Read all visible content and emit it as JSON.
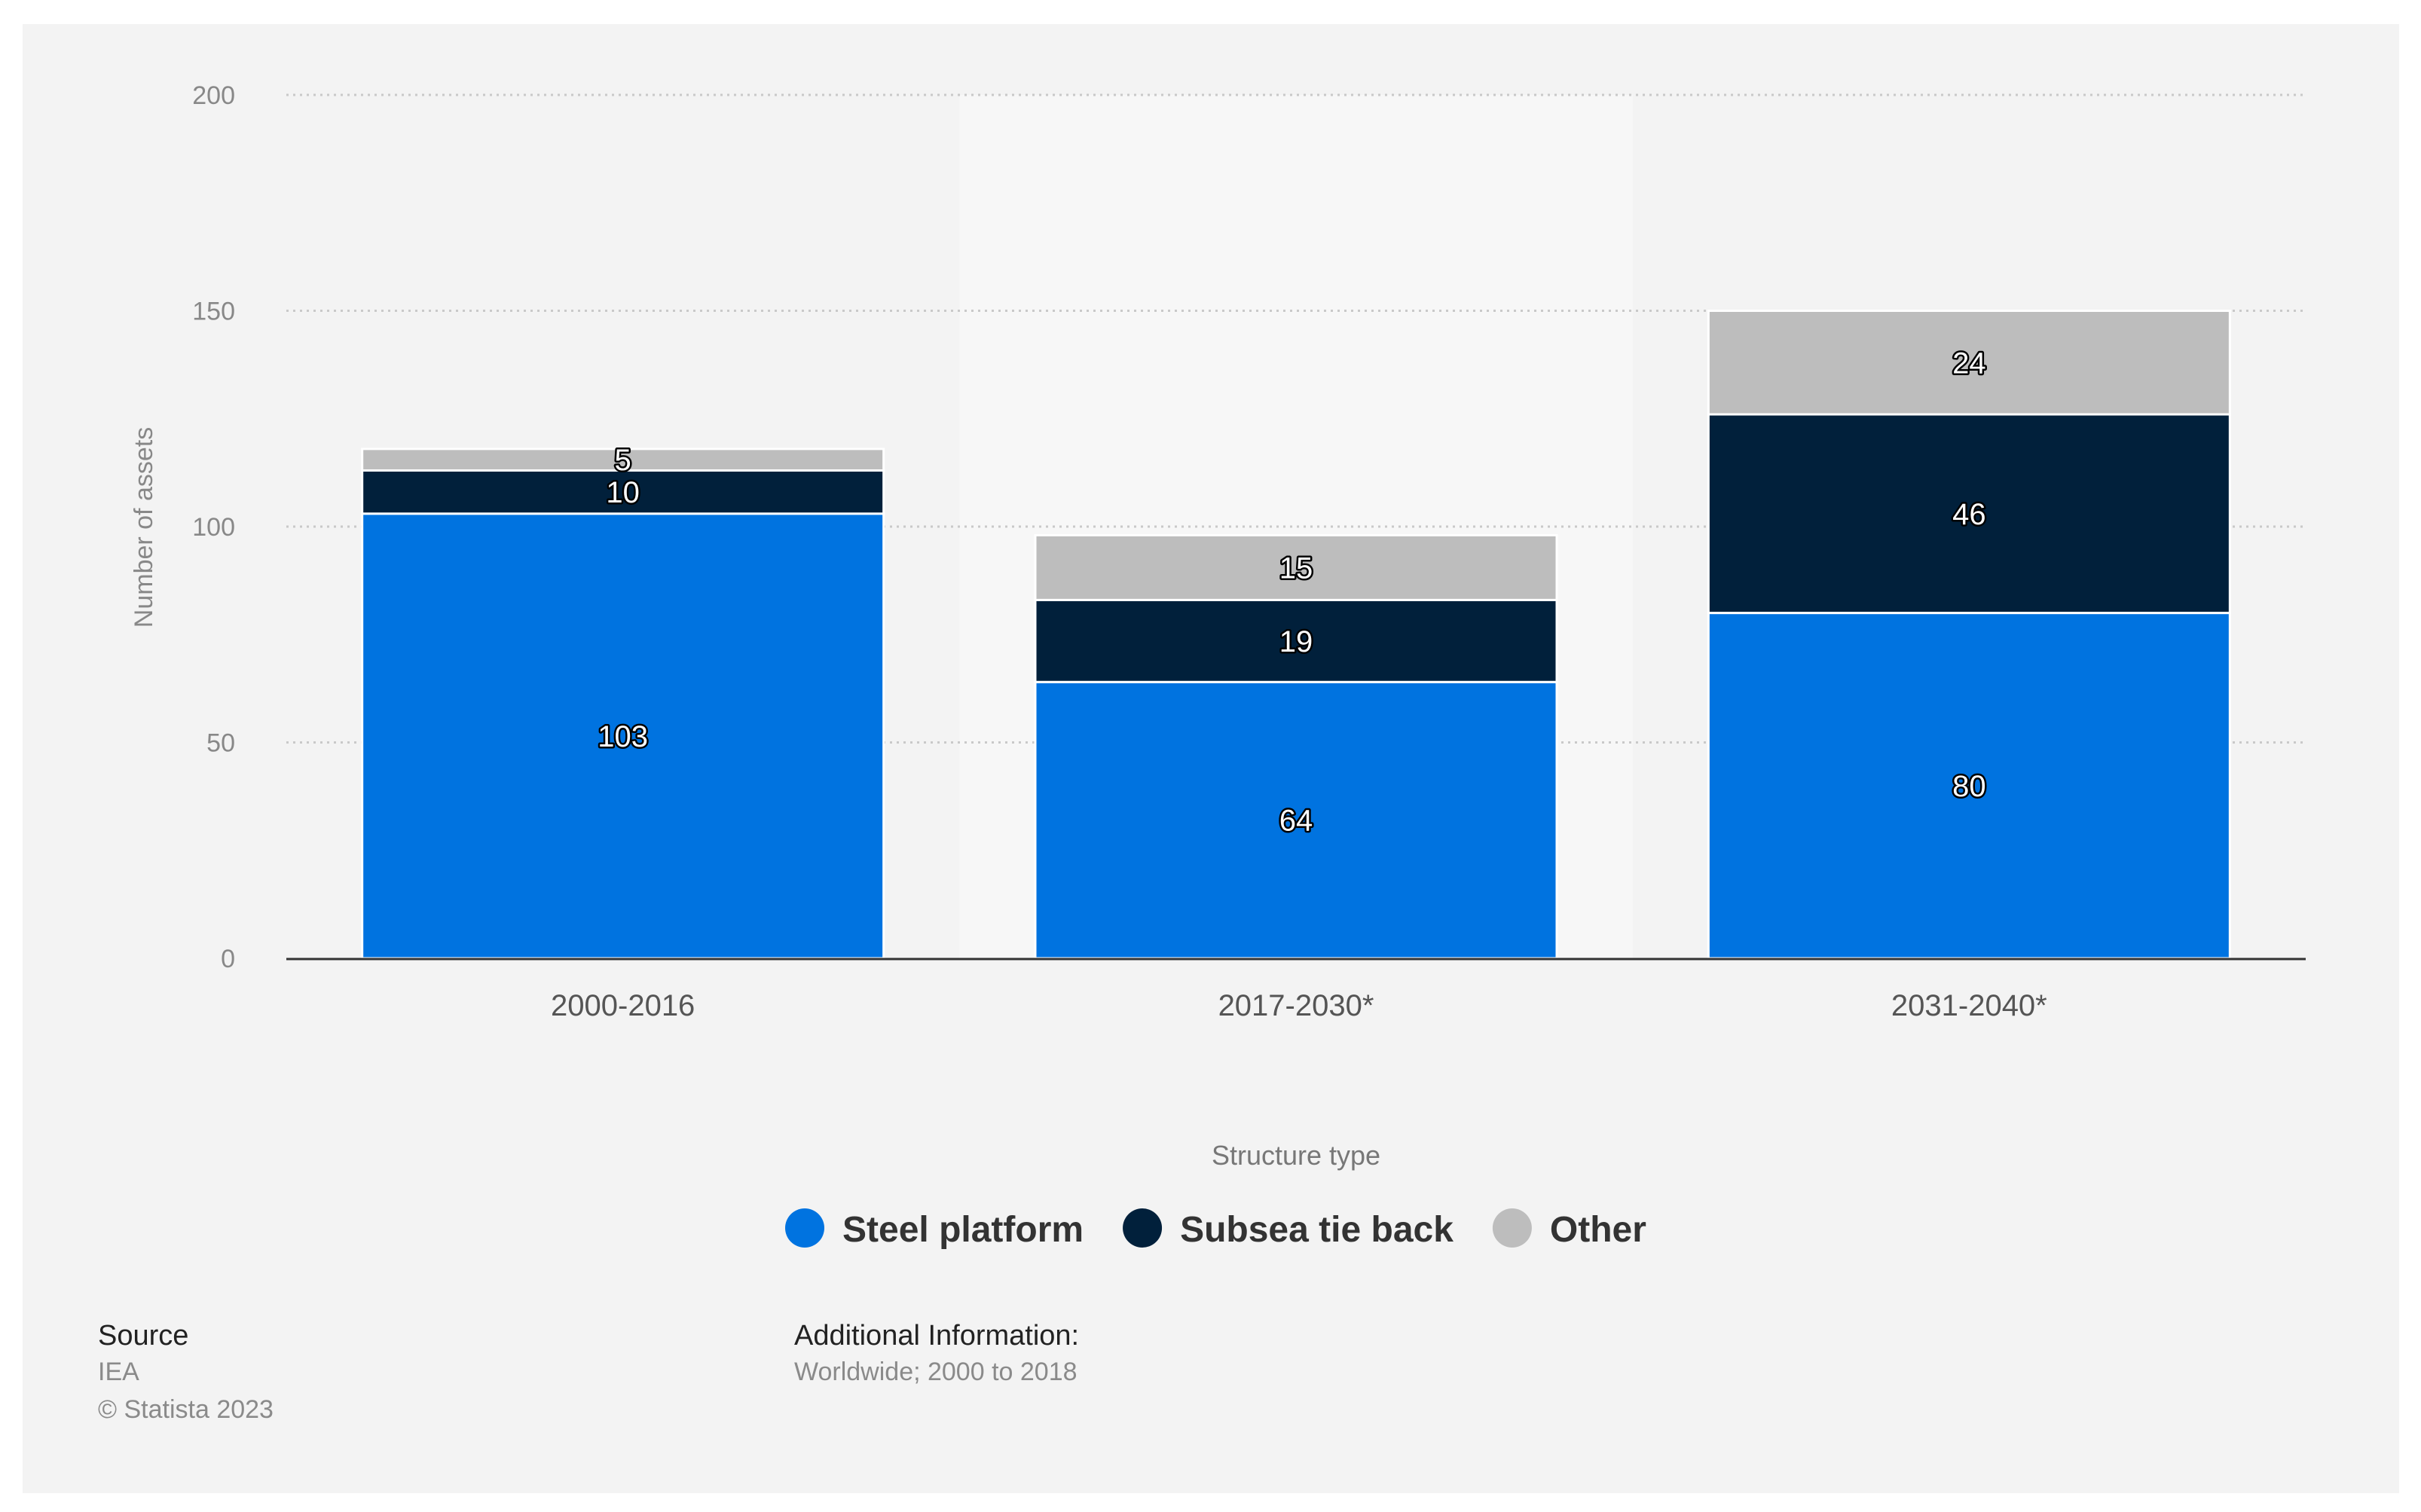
{
  "chart_data": {
    "type": "bar",
    "stacked": true,
    "categories": [
      "2000-2016",
      "2017-2030*",
      "2031-2040*"
    ],
    "series": [
      {
        "name": "Steel platform",
        "values": [
          103,
          64,
          80
        ],
        "color": "#0073e0"
      },
      {
        "name": "Subsea tie back",
        "values": [
          10,
          19,
          46
        ],
        "color": "#01203b"
      },
      {
        "name": "Other",
        "values": [
          5,
          15,
          24
        ],
        "color": "#bdbdbd"
      }
    ],
    "xlabel": "Structure type",
    "ylabel": "Number of assets",
    "ylim": [
      0,
      200
    ],
    "yticks": [
      0,
      50,
      100,
      150,
      200
    ],
    "grid": true,
    "legend_position": "bottom",
    "highlighted_category": "2017-2030*"
  },
  "footer": {
    "source_title": "Source",
    "source_name": "IEA",
    "copyright": "© Statista 2023",
    "info_title": "Additional Information:",
    "info_text": "Worldwide; 2000 to 2018"
  }
}
